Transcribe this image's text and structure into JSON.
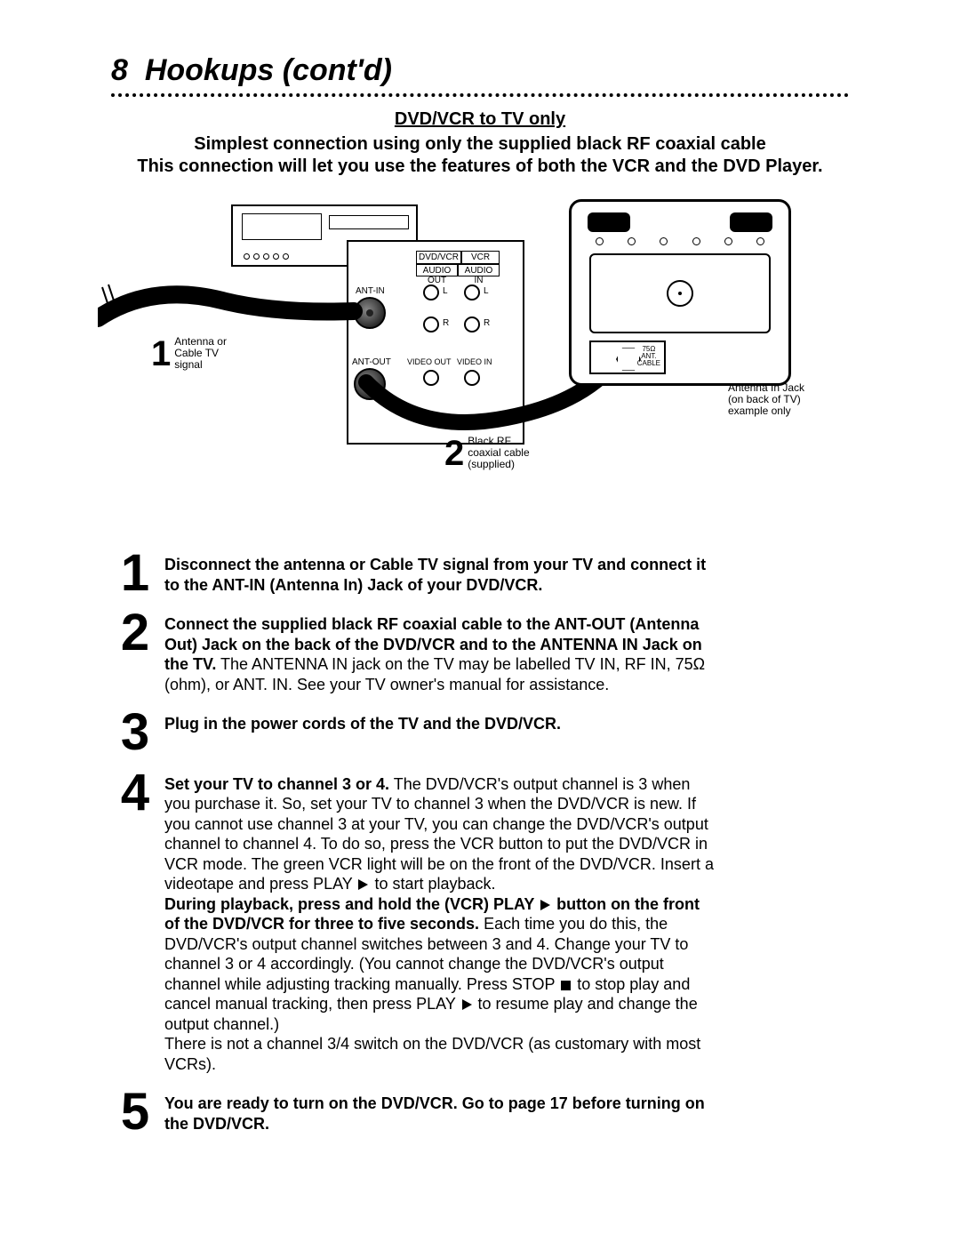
{
  "page": {
    "number": "8",
    "title": "Hookups (cont'd)"
  },
  "section": {
    "title": "DVD/VCR to TV only",
    "sub1": "Simplest connection using only the supplied black RF coaxial cable",
    "sub2": "This connection will let you use the features of both the VCR and the DVD Player."
  },
  "diagram": {
    "labels": {
      "ant_in": "ANT-IN",
      "ant_out": "ANT-OUT",
      "dvdvcr": "DVD/VCR",
      "vcr": "VCR",
      "audio_out": "AUDIO OUT",
      "audio_in": "AUDIO IN",
      "video_out": "VIDEO OUT",
      "video_in": "VIDEO IN",
      "L": "L",
      "R": "R",
      "ant75": "75Ω\nANT.\nCABLE"
    },
    "callout1": {
      "num": "1",
      "text": "Antenna or\nCable TV\nsignal"
    },
    "callout2": {
      "num": "2",
      "text": "Black RF\ncoaxial cable\n(supplied)"
    },
    "callout3": "Antenna In Jack\n(on back of TV)\nexample only"
  },
  "steps": [
    {
      "num": "1",
      "parts": [
        {
          "t": "b",
          "v": "Disconnect the antenna or Cable TV signal from your TV and connect it to the ANT-IN (Antenna In) Jack of your DVD/VCR."
        }
      ]
    },
    {
      "num": "2",
      "parts": [
        {
          "t": "b",
          "v": "Connect the supplied black RF coaxial cable to the ANT-OUT (Antenna Out) Jack on the back of the DVD/VCR and to the ANTENNA IN Jack on the TV."
        },
        {
          "t": "n",
          "v": " The ANTENNA IN jack on the TV may be labelled TV IN, RF IN, 75Ω (ohm), or ANT. IN. See your TV owner's manual for assistance."
        }
      ]
    },
    {
      "num": "3",
      "parts": [
        {
          "t": "b",
          "v": "Plug in the power cords of the TV and the DVD/VCR."
        }
      ]
    },
    {
      "num": "4",
      "parts": [
        {
          "t": "b",
          "v": "Set your TV to channel 3 or 4."
        },
        {
          "t": "n",
          "v": " The DVD/VCR's output channel is 3 when you purchase it. So, set your TV to channel 3 when the DVD/VCR is new. If you cannot use channel 3 at your TV, you can change the DVD/VCR's output channel to channel 4. To do so, press the VCR button to put the DVD/VCR in VCR mode. The green VCR light will be on the front of the DVD/VCR. Insert a videotape and press PLAY "
        },
        {
          "t": "play"
        },
        {
          "t": "n",
          "v": " to start playback."
        },
        {
          "t": "br"
        },
        {
          "t": "b",
          "v": "During playback, press and hold the (VCR) PLAY "
        },
        {
          "t": "play"
        },
        {
          "t": "b",
          "v": " button on the front of the DVD/VCR for three to five seconds."
        },
        {
          "t": "n",
          "v": " Each time you do this, the DVD/VCR's output channel switches between 3 and 4. Change your TV to channel 3 or 4 accordingly. (You cannot change the DVD/VCR's output channel while adjusting tracking manually. Press STOP "
        },
        {
          "t": "stop"
        },
        {
          "t": "n",
          "v": " to stop play and cancel manual tracking, then press PLAY "
        },
        {
          "t": "play"
        },
        {
          "t": "n",
          "v": " to resume play and change the output channel.)"
        },
        {
          "t": "br"
        },
        {
          "t": "n",
          "v": "There is not a channel 3/4 switch on the DVD/VCR (as customary with most VCRs)."
        }
      ]
    },
    {
      "num": "5",
      "parts": [
        {
          "t": "b",
          "v": "You are ready to turn on the DVD/VCR. Go to page 17 before turning on the DVD/VCR."
        }
      ]
    }
  ],
  "colors": {
    "text": "#000000",
    "background": "#ffffff",
    "cable": "#000000",
    "plug_shine": "#888888"
  }
}
